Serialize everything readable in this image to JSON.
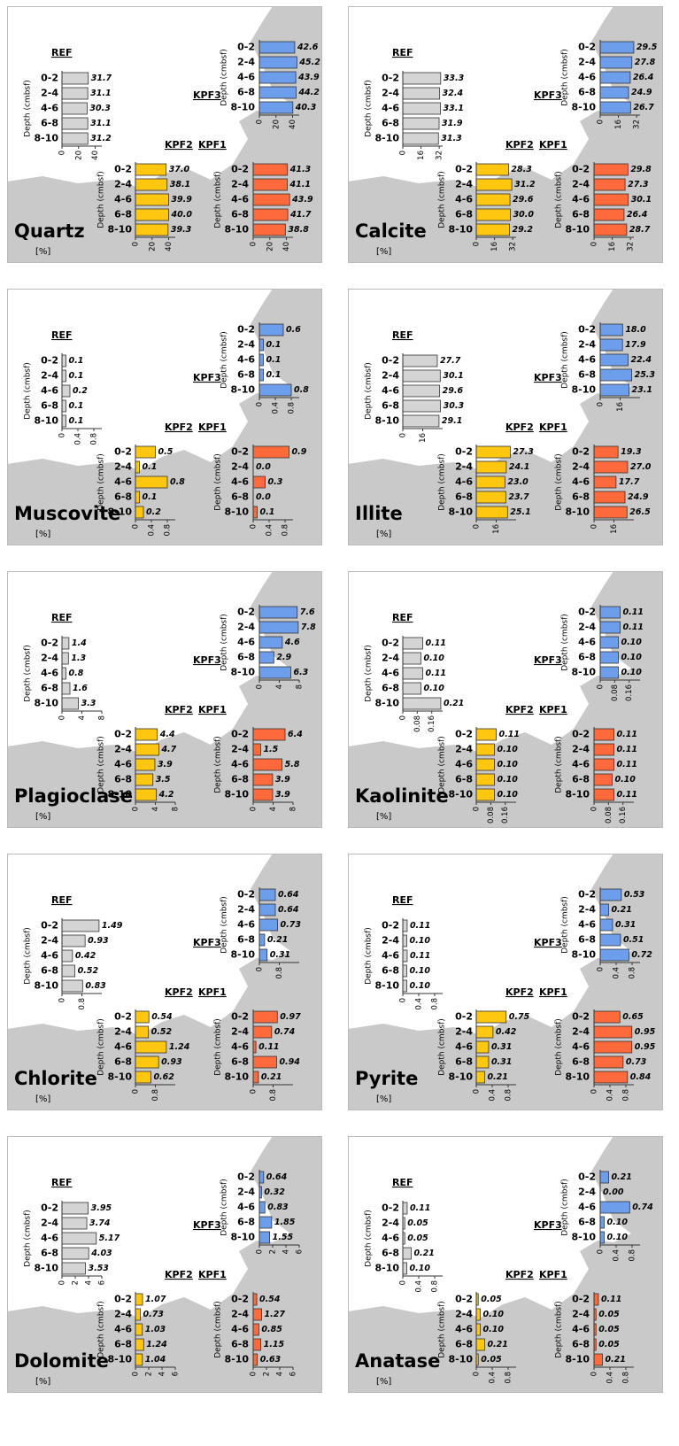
{
  "chart_data": [
    {
      "type": "bar",
      "title": "Quartz",
      "unit": "[%]",
      "y_label": "Depth (cmbsf)",
      "categories": [
        "0-2",
        "2-4",
        "4-6",
        "6-8",
        "8-10"
      ],
      "xlim": [
        0,
        48
      ],
      "xticks": [
        0,
        20,
        40
      ],
      "series": [
        {
          "name": "REF",
          "color": "#d4d4d4",
          "values": [
            31.7,
            31.1,
            30.3,
            31.1,
            31.2
          ],
          "value_labels": [
            "31.7",
            "31.1",
            "30.3",
            "31.1",
            "31.2"
          ]
        },
        {
          "name": "KPF3",
          "color": "#6d9eeb",
          "values": [
            42.6,
            45.2,
            43.9,
            44.2,
            40.3
          ],
          "value_labels": [
            "42.6",
            "45.2",
            "43.9",
            "44.2",
            "40.3"
          ]
        },
        {
          "name": "KPF2",
          "color": "#ffc70f",
          "values": [
            37.0,
            38.1,
            39.9,
            40.0,
            39.3
          ],
          "value_labels": [
            "37.0",
            "38.1",
            "39.9",
            "40.0",
            "39.3"
          ]
        },
        {
          "name": "KPF1",
          "color": "#ff6a3d",
          "values": [
            41.3,
            41.1,
            43.9,
            41.7,
            38.8
          ],
          "value_labels": [
            "41.3",
            "41.1",
            "43.9",
            "41.7",
            "38.8"
          ]
        }
      ]
    },
    {
      "type": "bar",
      "title": "Calcite",
      "unit": "[%]",
      "y_label": "Depth (cmbsf)",
      "categories": [
        "0-2",
        "2-4",
        "4-6",
        "6-8",
        "8-10"
      ],
      "xlim": [
        0,
        35
      ],
      "xticks": [
        0,
        16,
        32
      ],
      "series": [
        {
          "name": "REF",
          "color": "#d4d4d4",
          "values": [
            33.3,
            32.4,
            33.1,
            31.9,
            31.3
          ],
          "value_labels": [
            "33.3",
            "32.4",
            "33.1",
            "31.9",
            "31.3"
          ]
        },
        {
          "name": "KPF3",
          "color": "#6d9eeb",
          "values": [
            29.5,
            27.8,
            26.4,
            24.9,
            26.7
          ],
          "value_labels": [
            "29.5",
            "27.8",
            "26.4",
            "24.9",
            "26.7"
          ]
        },
        {
          "name": "KPF2",
          "color": "#ffc70f",
          "values": [
            28.3,
            31.2,
            29.6,
            30.0,
            29.2
          ],
          "value_labels": [
            "28.3",
            "31.2",
            "29.6",
            "30.0",
            "29.2"
          ]
        },
        {
          "name": "KPF1",
          "color": "#ff6a3d",
          "values": [
            29.8,
            27.3,
            30.1,
            26.4,
            28.7
          ],
          "value_labels": [
            "29.8",
            "27.3",
            "30.1",
            "26.4",
            "28.7"
          ]
        }
      ]
    },
    {
      "type": "bar",
      "title": "Muscovite",
      "unit": "[%]",
      "y_label": "Depth (cmbsf)",
      "categories": [
        "0-2",
        "2-4",
        "4-6",
        "6-8",
        "8-10"
      ],
      "xlim": [
        0,
        1
      ],
      "xticks": [
        0,
        0.4,
        0.8
      ],
      "series": [
        {
          "name": "REF",
          "color": "#d4d4d4",
          "values": [
            0.1,
            0.1,
            0.2,
            0.1,
            0.1
          ],
          "value_labels": [
            "0.1",
            "0.1",
            "0.2",
            "0.1",
            "0.1"
          ]
        },
        {
          "name": "KPF3",
          "color": "#6d9eeb",
          "values": [
            0.6,
            0.1,
            0.1,
            0.1,
            0.8
          ],
          "value_labels": [
            "0.6",
            "0.1",
            "0.1",
            "0.1",
            "0.8"
          ]
        },
        {
          "name": "KPF2",
          "color": "#ffc70f",
          "values": [
            0.5,
            0.1,
            0.8,
            0.1,
            0.2
          ],
          "value_labels": [
            "0.5",
            "0.1",
            "0.8",
            "0.1",
            "0.2"
          ]
        },
        {
          "name": "KPF1",
          "color": "#ff6a3d",
          "values": [
            0.9,
            0.0,
            0.3,
            0.0,
            0.1
          ],
          "value_labels": [
            "0.9",
            "0.0",
            "0.3",
            "0.0",
            "0.1"
          ]
        }
      ]
    },
    {
      "type": "bar",
      "title": "Illite",
      "unit": "[%]",
      "y_label": "Depth (cmbsf)",
      "categories": [
        "0-2",
        "2-4",
        "4-6",
        "6-8",
        "8-10"
      ],
      "xlim": [
        0,
        32
      ],
      "xticks": [
        0,
        16
      ],
      "series": [
        {
          "name": "REF",
          "color": "#d4d4d4",
          "values": [
            27.7,
            30.1,
            29.6,
            30.3,
            29.1
          ],
          "value_labels": [
            "27.7",
            "30.1",
            "29.6",
            "30.3",
            "29.1"
          ]
        },
        {
          "name": "KPF3",
          "color": "#6d9eeb",
          "values": [
            18.0,
            17.9,
            22.4,
            25.3,
            23.1
          ],
          "value_labels": [
            "18.0",
            "17.9",
            "22.4",
            "25.3",
            "23.1"
          ]
        },
        {
          "name": "KPF2",
          "color": "#ffc70f",
          "values": [
            27.3,
            24.1,
            23.0,
            23.7,
            25.1
          ],
          "value_labels": [
            "27.3",
            "24.1",
            "23.0",
            "23.7",
            "25.1"
          ]
        },
        {
          "name": "KPF1",
          "color": "#ff6a3d",
          "values": [
            19.3,
            27.0,
            17.7,
            24.9,
            26.5
          ],
          "value_labels": [
            "19.3",
            "27.0",
            "17.7",
            "24.9",
            "26.5"
          ]
        }
      ]
    },
    {
      "type": "bar",
      "title": "Plagioclase",
      "unit": "[%]",
      "y_label": "Depth (cmbsf)",
      "categories": [
        "0-2",
        "2-4",
        "4-6",
        "6-8",
        "8-10"
      ],
      "xlim": [
        0,
        8
      ],
      "xticks": [
        0,
        4,
        8
      ],
      "series": [
        {
          "name": "REF",
          "color": "#d4d4d4",
          "values": [
            1.4,
            1.3,
            0.8,
            1.6,
            3.3
          ],
          "value_labels": [
            "1.4",
            "1.3",
            "0.8",
            "1.6",
            "3.3"
          ]
        },
        {
          "name": "KPF3",
          "color": "#6d9eeb",
          "values": [
            7.6,
            7.8,
            4.6,
            2.9,
            6.3
          ],
          "value_labels": [
            "7.6",
            "7.8",
            "4.6",
            "2.9",
            "6.3"
          ]
        },
        {
          "name": "KPF2",
          "color": "#ffc70f",
          "values": [
            4.4,
            4.7,
            3.9,
            3.5,
            4.2
          ],
          "value_labels": [
            "4.4",
            "4.7",
            "3.9",
            "3.5",
            "4.2"
          ]
        },
        {
          "name": "KPF1",
          "color": "#ff6a3d",
          "values": [
            6.4,
            1.5,
            5.8,
            3.9,
            3.9
          ],
          "value_labels": [
            "6.4",
            "1.5",
            "5.8",
            "3.9",
            "3.9"
          ]
        }
      ]
    },
    {
      "type": "bar",
      "title": "Kaolinite",
      "unit": "[%]",
      "y_label": "Depth (cmbsf)",
      "categories": [
        "0-2",
        "2-4",
        "4-6",
        "6-8",
        "8-10"
      ],
      "xlim": [
        0,
        0.22
      ],
      "xticks": [
        0,
        0.08,
        0.16
      ],
      "series": [
        {
          "name": "REF",
          "color": "#d4d4d4",
          "values": [
            0.11,
            0.1,
            0.11,
            0.1,
            0.21
          ],
          "value_labels": [
            "0.11",
            "0.10",
            "0.11",
            "0.10",
            "0.21"
          ]
        },
        {
          "name": "KPF3",
          "color": "#6d9eeb",
          "values": [
            0.11,
            0.11,
            0.1,
            0.1,
            0.1
          ],
          "value_labels": [
            "0.11",
            "0.11",
            "0.10",
            "0.10",
            "0.10"
          ]
        },
        {
          "name": "KPF2",
          "color": "#ffc70f",
          "values": [
            0.11,
            0.1,
            0.1,
            0.1,
            0.1
          ],
          "value_labels": [
            "0.11",
            "0.10",
            "0.10",
            "0.10",
            "0.10"
          ]
        },
        {
          "name": "KPF1",
          "color": "#ff6a3d",
          "values": [
            0.11,
            0.11,
            0.11,
            0.1,
            0.11
          ],
          "value_labels": [
            "0.11",
            "0.11",
            "0.11",
            "0.10",
            "0.11"
          ]
        }
      ]
    },
    {
      "type": "bar",
      "title": "Chlorite",
      "unit": "[%]",
      "y_label": "Depth (cmbsf)",
      "categories": [
        "0-2",
        "2-4",
        "4-6",
        "6-8",
        "8-10"
      ],
      "xlim": [
        0,
        1.6
      ],
      "xticks": [
        0,
        0.8
      ],
      "series": [
        {
          "name": "REF",
          "color": "#d4d4d4",
          "values": [
            1.49,
            0.93,
            0.42,
            0.52,
            0.83
          ],
          "value_labels": [
            "1.49",
            "0.93",
            "0.42",
            "0.52",
            "0.83"
          ]
        },
        {
          "name": "KPF3",
          "color": "#6d9eeb",
          "values": [
            0.64,
            0.64,
            0.73,
            0.21,
            0.31
          ],
          "value_labels": [
            "0.64",
            "0.64",
            "0.73",
            "0.21",
            "0.31"
          ]
        },
        {
          "name": "KPF2",
          "color": "#ffc70f",
          "values": [
            0.54,
            0.52,
            1.24,
            0.93,
            0.62
          ],
          "value_labels": [
            "0.54",
            "0.52",
            "1.24",
            "0.93",
            "0.62"
          ]
        },
        {
          "name": "KPF1",
          "color": "#ff6a3d",
          "values": [
            0.97,
            0.74,
            0.11,
            0.94,
            0.21
          ],
          "value_labels": [
            "0.97",
            "0.74",
            "0.11",
            "0.94",
            "0.21"
          ]
        }
      ]
    },
    {
      "type": "bar",
      "title": "Pyrite",
      "unit": "[%]",
      "y_label": "Depth (cmbsf)",
      "categories": [
        "0-2",
        "2-4",
        "4-6",
        "6-8",
        "8-10"
      ],
      "xlim": [
        0,
        1
      ],
      "xticks": [
        0,
        0.4,
        0.8
      ],
      "series": [
        {
          "name": "REF",
          "color": "#d4d4d4",
          "values": [
            0.11,
            0.1,
            0.11,
            0.1,
            0.1
          ],
          "value_labels": [
            "0.11",
            "0.10",
            "0.11",
            "0.10",
            "0.10"
          ]
        },
        {
          "name": "KPF3",
          "color": "#6d9eeb",
          "values": [
            0.53,
            0.21,
            0.31,
            0.51,
            0.72
          ],
          "value_labels": [
            "0.53",
            "0.21",
            "0.31",
            "0.51",
            "0.72"
          ]
        },
        {
          "name": "KPF2",
          "color": "#ffc70f",
          "values": [
            0.75,
            0.42,
            0.31,
            0.31,
            0.21
          ],
          "value_labels": [
            "0.75",
            "0.42",
            "0.31",
            "0.31",
            "0.21"
          ]
        },
        {
          "name": "KPF1",
          "color": "#ff6a3d",
          "values": [
            0.65,
            0.95,
            0.95,
            0.73,
            0.84
          ],
          "value_labels": [
            "0.65",
            "0.95",
            "0.95",
            "0.73",
            "0.84"
          ]
        }
      ]
    },
    {
      "type": "bar",
      "title": "Dolomite",
      "unit": "[%]",
      "y_label": "Depth (cmbsf)",
      "categories": [
        "0-2",
        "2-4",
        "4-6",
        "6-8",
        "8-10"
      ],
      "xlim": [
        0,
        6
      ],
      "xticks": [
        0,
        2,
        4,
        6
      ],
      "series": [
        {
          "name": "REF",
          "color": "#d4d4d4",
          "values": [
            3.95,
            3.74,
            5.17,
            4.03,
            3.53
          ],
          "value_labels": [
            "3.95",
            "3.74",
            "5.17",
            "4.03",
            "3.53"
          ]
        },
        {
          "name": "KPF3",
          "color": "#6d9eeb",
          "values": [
            0.64,
            0.32,
            0.83,
            1.85,
            1.55
          ],
          "value_labels": [
            "0.64",
            "0.32",
            "0.83",
            "1.85",
            "1.55"
          ]
        },
        {
          "name": "KPF2",
          "color": "#ffc70f",
          "values": [
            1.07,
            0.73,
            1.03,
            1.24,
            1.04
          ],
          "value_labels": [
            "1.07",
            "0.73",
            "1.03",
            "1.24",
            "1.04"
          ]
        },
        {
          "name": "KPF1",
          "color": "#ff6a3d",
          "values": [
            0.54,
            1.27,
            0.85,
            1.15,
            0.63
          ],
          "value_labels": [
            "0.54",
            "1.27",
            "0.85",
            "1.15",
            "0.63"
          ]
        }
      ]
    },
    {
      "type": "bar",
      "title": "Anatase",
      "unit": "[%]",
      "y_label": "Depth (cmbsf)",
      "categories": [
        "0-2",
        "2-4",
        "4-6",
        "6-8",
        "8-10"
      ],
      "xlim": [
        0,
        1
      ],
      "xticks": [
        0,
        0.4,
        0.8
      ],
      "series": [
        {
          "name": "REF",
          "color": "#d4d4d4",
          "values": [
            0.11,
            0.05,
            0.05,
            0.21,
            0.1
          ],
          "value_labels": [
            "0.11",
            "0.05",
            "0.05",
            "0.21",
            "0.10"
          ]
        },
        {
          "name": "KPF3",
          "color": "#6d9eeb",
          "values": [
            0.21,
            0.0,
            0.74,
            0.1,
            0.1
          ],
          "value_labels": [
            "0.21",
            "0.00",
            "0.74",
            "0.10",
            "0.10"
          ]
        },
        {
          "name": "KPF2",
          "color": "#ffc70f",
          "values": [
            0.05,
            0.1,
            0.1,
            0.21,
            0.05
          ],
          "value_labels": [
            "0.05",
            "0.10",
            "0.10",
            "0.21",
            "0.05"
          ]
        },
        {
          "name": "KPF1",
          "color": "#ff6a3d",
          "values": [
            0.11,
            0.05,
            0.05,
            0.05,
            0.21
          ],
          "value_labels": [
            "0.11",
            "0.05",
            "0.05",
            "0.05",
            "0.21"
          ]
        }
      ]
    }
  ]
}
